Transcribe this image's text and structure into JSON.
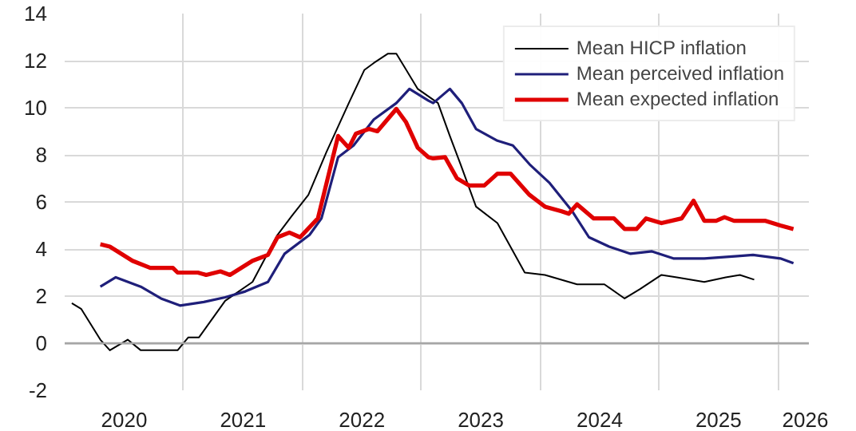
{
  "chart_data": {
    "type": "line",
    "xlim": [
      2020.0,
      2026.26
    ],
    "ylim": [
      -2,
      14
    ],
    "xticks": [
      {
        "value": 2020.5,
        "label": "2020"
      },
      {
        "value": 2021,
        "label": null
      },
      {
        "value": 2021.5,
        "label": "2021"
      },
      {
        "value": 2022,
        "label": null
      },
      {
        "value": 2022.5,
        "label": "2022"
      },
      {
        "value": 2023,
        "label": null
      },
      {
        "value": 2023.5,
        "label": "2023"
      },
      {
        "value": 2024,
        "label": null
      },
      {
        "value": 2024.5,
        "label": "2024"
      },
      {
        "value": 2025,
        "label": null
      },
      {
        "value": 2025.5,
        "label": "2025"
      },
      {
        "value": 2026,
        "label": null
      },
      {
        "value": 2026.23,
        "label": "2026"
      }
    ],
    "yticks": [
      -2,
      0,
      2,
      4,
      6,
      8,
      10,
      12,
      14
    ],
    "grid": true,
    "legend": "top right",
    "marker": "none",
    "line_style": "solid",
    "series": [
      {
        "name": "Mean HICP inflation",
        "color": "#000000",
        "x": [
          2020.06,
          2020.14,
          2020.3,
          2020.38,
          2020.53,
          2020.64,
          2020.81,
          2020.95,
          2021.04,
          2021.13,
          2021.35,
          2021.58,
          2021.79,
          2021.91,
          2022.05,
          2022.2,
          2022.39,
          2022.52,
          2022.6,
          2022.72,
          2022.79,
          2022.97,
          2023.14,
          2023.24,
          2023.33,
          2023.46,
          2023.64,
          2023.87,
          2024.04,
          2024.31,
          2024.54,
          2024.71,
          2024.84,
          2025.02,
          2025.15,
          2025.38,
          2025.56,
          2025.68,
          2025.8
        ],
        "values": [
          1.7,
          1.45,
          0.15,
          -0.3,
          0.15,
          -0.3,
          -0.3,
          -0.3,
          0.25,
          0.25,
          1.8,
          2.6,
          4.6,
          5.4,
          6.3,
          8.1,
          10.2,
          11.6,
          11.9,
          12.3,
          12.3,
          10.8,
          10.2,
          8.8,
          7.6,
          5.8,
          5.1,
          3.0,
          2.9,
          2.5,
          2.5,
          1.9,
          2.3,
          2.9,
          2.8,
          2.6,
          2.8,
          2.9,
          2.7
        ]
      },
      {
        "name": "Mean perceived inflation",
        "color": "#1f1f7a",
        "x": [
          2020.3,
          2020.43,
          2020.64,
          2020.81,
          2020.97,
          2021.17,
          2021.35,
          2021.52,
          2021.71,
          2021.85,
          2022.06,
          2022.16,
          2022.3,
          2022.43,
          2022.6,
          2022.79,
          2022.9,
          2023.06,
          2023.1,
          2023.24,
          2023.34,
          2023.46,
          2023.64,
          2023.77,
          2023.91,
          2024.08,
          2024.27,
          2024.41,
          2024.58,
          2024.76,
          2024.94,
          2025.12,
          2025.38,
          2025.66,
          2025.79,
          2026.02,
          2026.13
        ],
        "values": [
          2.4,
          2.8,
          2.4,
          1.9,
          1.6,
          1.75,
          1.95,
          2.2,
          2.6,
          3.8,
          4.6,
          5.3,
          7.9,
          8.4,
          9.5,
          10.2,
          10.8,
          10.3,
          10.2,
          10.8,
          10.2,
          9.1,
          8.6,
          8.4,
          7.6,
          6.8,
          5.6,
          4.5,
          4.1,
          3.8,
          3.9,
          3.6,
          3.6,
          3.7,
          3.75,
          3.6,
          3.4
        ]
      },
      {
        "name": "Mean expected inflation",
        "color": "#e00000",
        "x": [
          2020.3,
          2020.38,
          2020.57,
          2020.72,
          2020.91,
          2020.95,
          2021.12,
          2021.19,
          2021.31,
          2021.39,
          2021.58,
          2021.71,
          2021.79,
          2021.89,
          2021.98,
          2022.13,
          2022.3,
          2022.39,
          2022.45,
          2022.56,
          2022.63,
          2022.79,
          2022.87,
          2022.97,
          2023.06,
          2023.1,
          2023.2,
          2023.3,
          2023.4,
          2023.53,
          2023.64,
          2023.75,
          2023.91,
          2024.04,
          2024.18,
          2024.24,
          2024.31,
          2024.45,
          2024.62,
          2024.71,
          2024.81,
          2024.89,
          2025.02,
          2025.19,
          2025.29,
          2025.38,
          2025.48,
          2025.55,
          2025.63,
          2025.89,
          2026.02,
          2026.13
        ],
        "values": [
          4.2,
          4.1,
          3.5,
          3.2,
          3.2,
          3.0,
          3.0,
          2.9,
          3.05,
          2.9,
          3.5,
          3.75,
          4.5,
          4.7,
          4.5,
          5.3,
          8.8,
          8.3,
          8.9,
          9.1,
          9.0,
          9.95,
          9.4,
          8.3,
          7.9,
          7.85,
          7.9,
          7.0,
          6.7,
          6.7,
          7.2,
          7.2,
          6.3,
          5.8,
          5.6,
          5.5,
          5.9,
          5.3,
          5.3,
          4.85,
          4.85,
          5.3,
          5.1,
          5.3,
          6.05,
          5.2,
          5.2,
          5.35,
          5.2,
          5.2,
          5.0,
          4.85
        ]
      }
    ]
  }
}
